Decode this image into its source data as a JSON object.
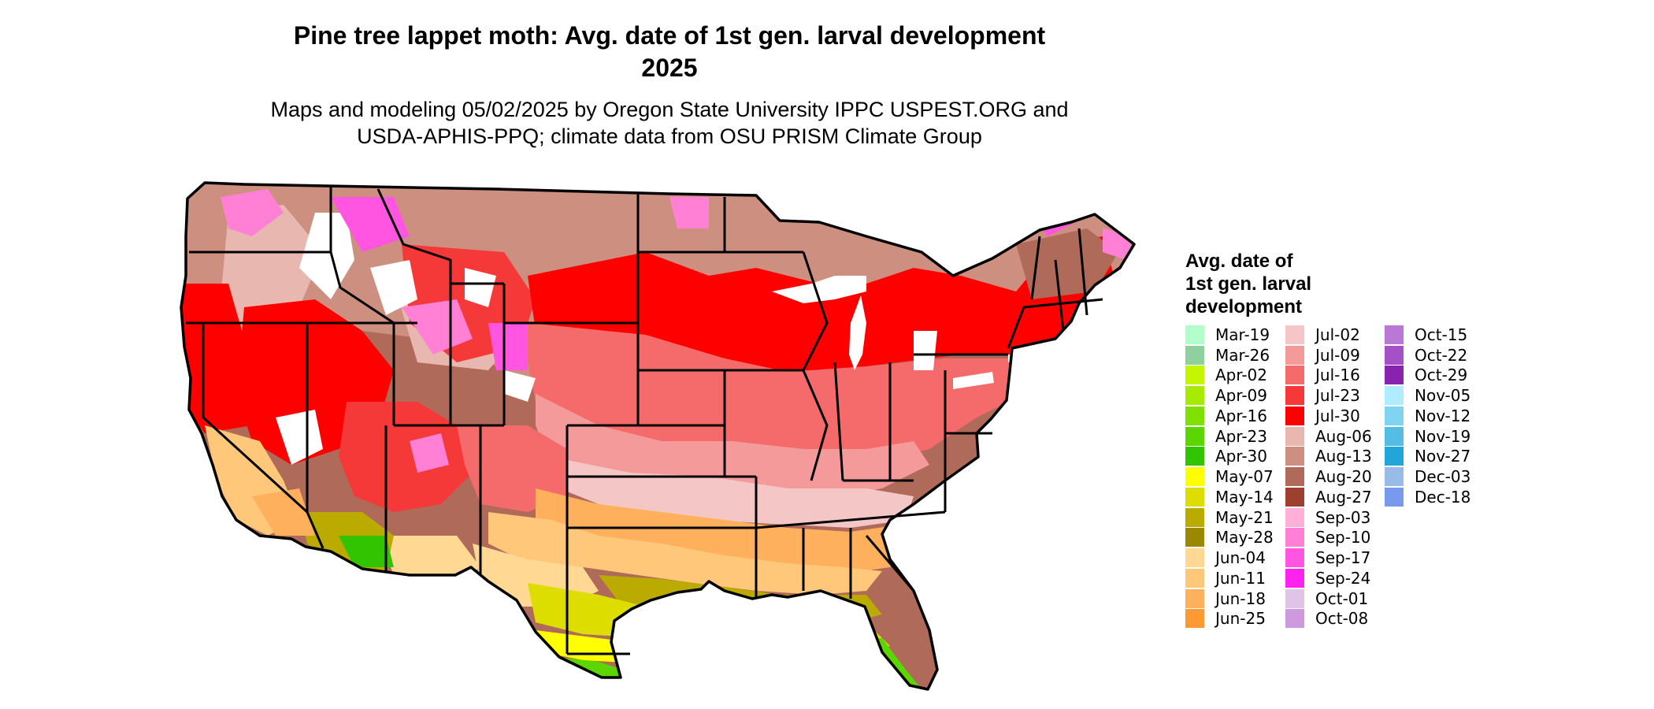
{
  "title_line1": "Pine tree lappet moth: Avg. date of 1st gen. larval development",
  "title_line2": "2025",
  "subtitle_line1": "Maps and modeling 05/02/2025 by Oregon State University IPPC USPEST.ORG and",
  "subtitle_line2": "USDA-APHIS-PPQ; climate data from OSU PRISM Climate Group",
  "legend": {
    "title_lines": [
      "Avg. date of",
      "1st gen. larval",
      "development"
    ],
    "columns": [
      [
        {
          "label": "Mar-19",
          "color": "#b3ffcc"
        },
        {
          "label": "Mar-26",
          "color": "#8fd19e"
        },
        {
          "label": "Apr-02",
          "color": "#c6f500"
        },
        {
          "label": "Apr-09",
          "color": "#a6eb00"
        },
        {
          "label": "Apr-16",
          "color": "#80e000"
        },
        {
          "label": "Apr-23",
          "color": "#5cd600"
        },
        {
          "label": "Apr-30",
          "color": "#33c400"
        },
        {
          "label": "May-07",
          "color": "#ffff00"
        },
        {
          "label": "May-14",
          "color": "#dddd00"
        },
        {
          "label": "May-21",
          "color": "#bbaa00"
        },
        {
          "label": "May-28",
          "color": "#998800"
        },
        {
          "label": "Jun-04",
          "color": "#ffd994"
        },
        {
          "label": "Jun-11",
          "color": "#ffc77a"
        },
        {
          "label": "Jun-18",
          "color": "#ffb05c"
        },
        {
          "label": "Jun-25",
          "color": "#ff9933"
        }
      ],
      [
        {
          "label": "Jul-02",
          "color": "#f5c6c6"
        },
        {
          "label": "Jul-09",
          "color": "#f59a9a"
        },
        {
          "label": "Jul-16",
          "color": "#f56a6a"
        },
        {
          "label": "Jul-23",
          "color": "#f53838"
        },
        {
          "label": "Jul-30",
          "color": "#ff0000"
        },
        {
          "label": "Aug-06",
          "color": "#e8b8b0"
        },
        {
          "label": "Aug-13",
          "color": "#cc8f80"
        },
        {
          "label": "Aug-20",
          "color": "#b06a5a"
        },
        {
          "label": "Aug-27",
          "color": "#9e4030"
        },
        {
          "label": "Sep-03",
          "color": "#ffb0d9"
        },
        {
          "label": "Sep-10",
          "color": "#ff80d5"
        },
        {
          "label": "Sep-17",
          "color": "#ff55e0"
        },
        {
          "label": "Sep-24",
          "color": "#ff22ee"
        },
        {
          "label": "Oct-01",
          "color": "#e0c4e8"
        },
        {
          "label": "Oct-08",
          "color": "#cf99dd"
        }
      ],
      [
        {
          "label": "Oct-15",
          "color": "#bb77d5"
        },
        {
          "label": "Oct-22",
          "color": "#a650c8"
        },
        {
          "label": "Oct-29",
          "color": "#8a22b0"
        },
        {
          "label": "Nov-05",
          "color": "#b0ecff"
        },
        {
          "label": "Nov-12",
          "color": "#80d4f2"
        },
        {
          "label": "Nov-19",
          "color": "#55bde5"
        },
        {
          "label": "Nov-27",
          "color": "#22a5d8"
        },
        {
          "label": "Dec-03",
          "color": "#99bbe8"
        },
        {
          "label": "Dec-18",
          "color": "#7799ee"
        }
      ]
    ]
  }
}
